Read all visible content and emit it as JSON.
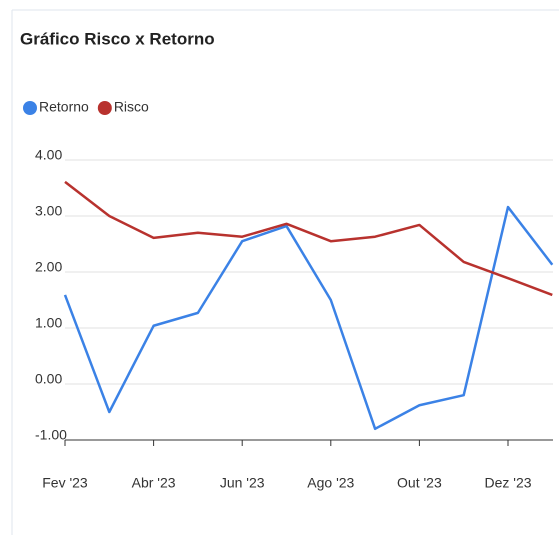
{
  "chart_data": {
    "type": "line",
    "title": "Gráfico Risco x Retorno",
    "categories": [
      "Fev '23",
      null,
      "Abr '23",
      null,
      "Jun '23",
      null,
      "Ago '23",
      null,
      "Out '23",
      null,
      "Dez '23",
      null
    ],
    "series": [
      {
        "name": "Retorno",
        "color": "#3b82e6",
        "values": [
          1.59,
          -0.5,
          1.04,
          1.27,
          2.55,
          2.82,
          1.5,
          -0.8,
          -0.38,
          -0.2,
          3.16,
          2.13
        ]
      },
      {
        "name": "Risco",
        "color": "#b8322e",
        "values": [
          3.61,
          3.0,
          2.61,
          2.7,
          2.63,
          2.86,
          2.55,
          2.63,
          2.84,
          2.18,
          1.89,
          1.59
        ]
      }
    ],
    "ylim": [
      -1,
      4
    ],
    "yticks": [
      {
        "value": -1,
        "label": "-1.00"
      },
      {
        "value": 0,
        "label": "0.00"
      },
      {
        "value": 1,
        "label": "1.00"
      },
      {
        "value": 2,
        "label": "2.00"
      },
      {
        "value": 3,
        "label": "3.00"
      },
      {
        "value": 4,
        "label": "4.00"
      }
    ],
    "grid": true,
    "legend": "top"
  }
}
